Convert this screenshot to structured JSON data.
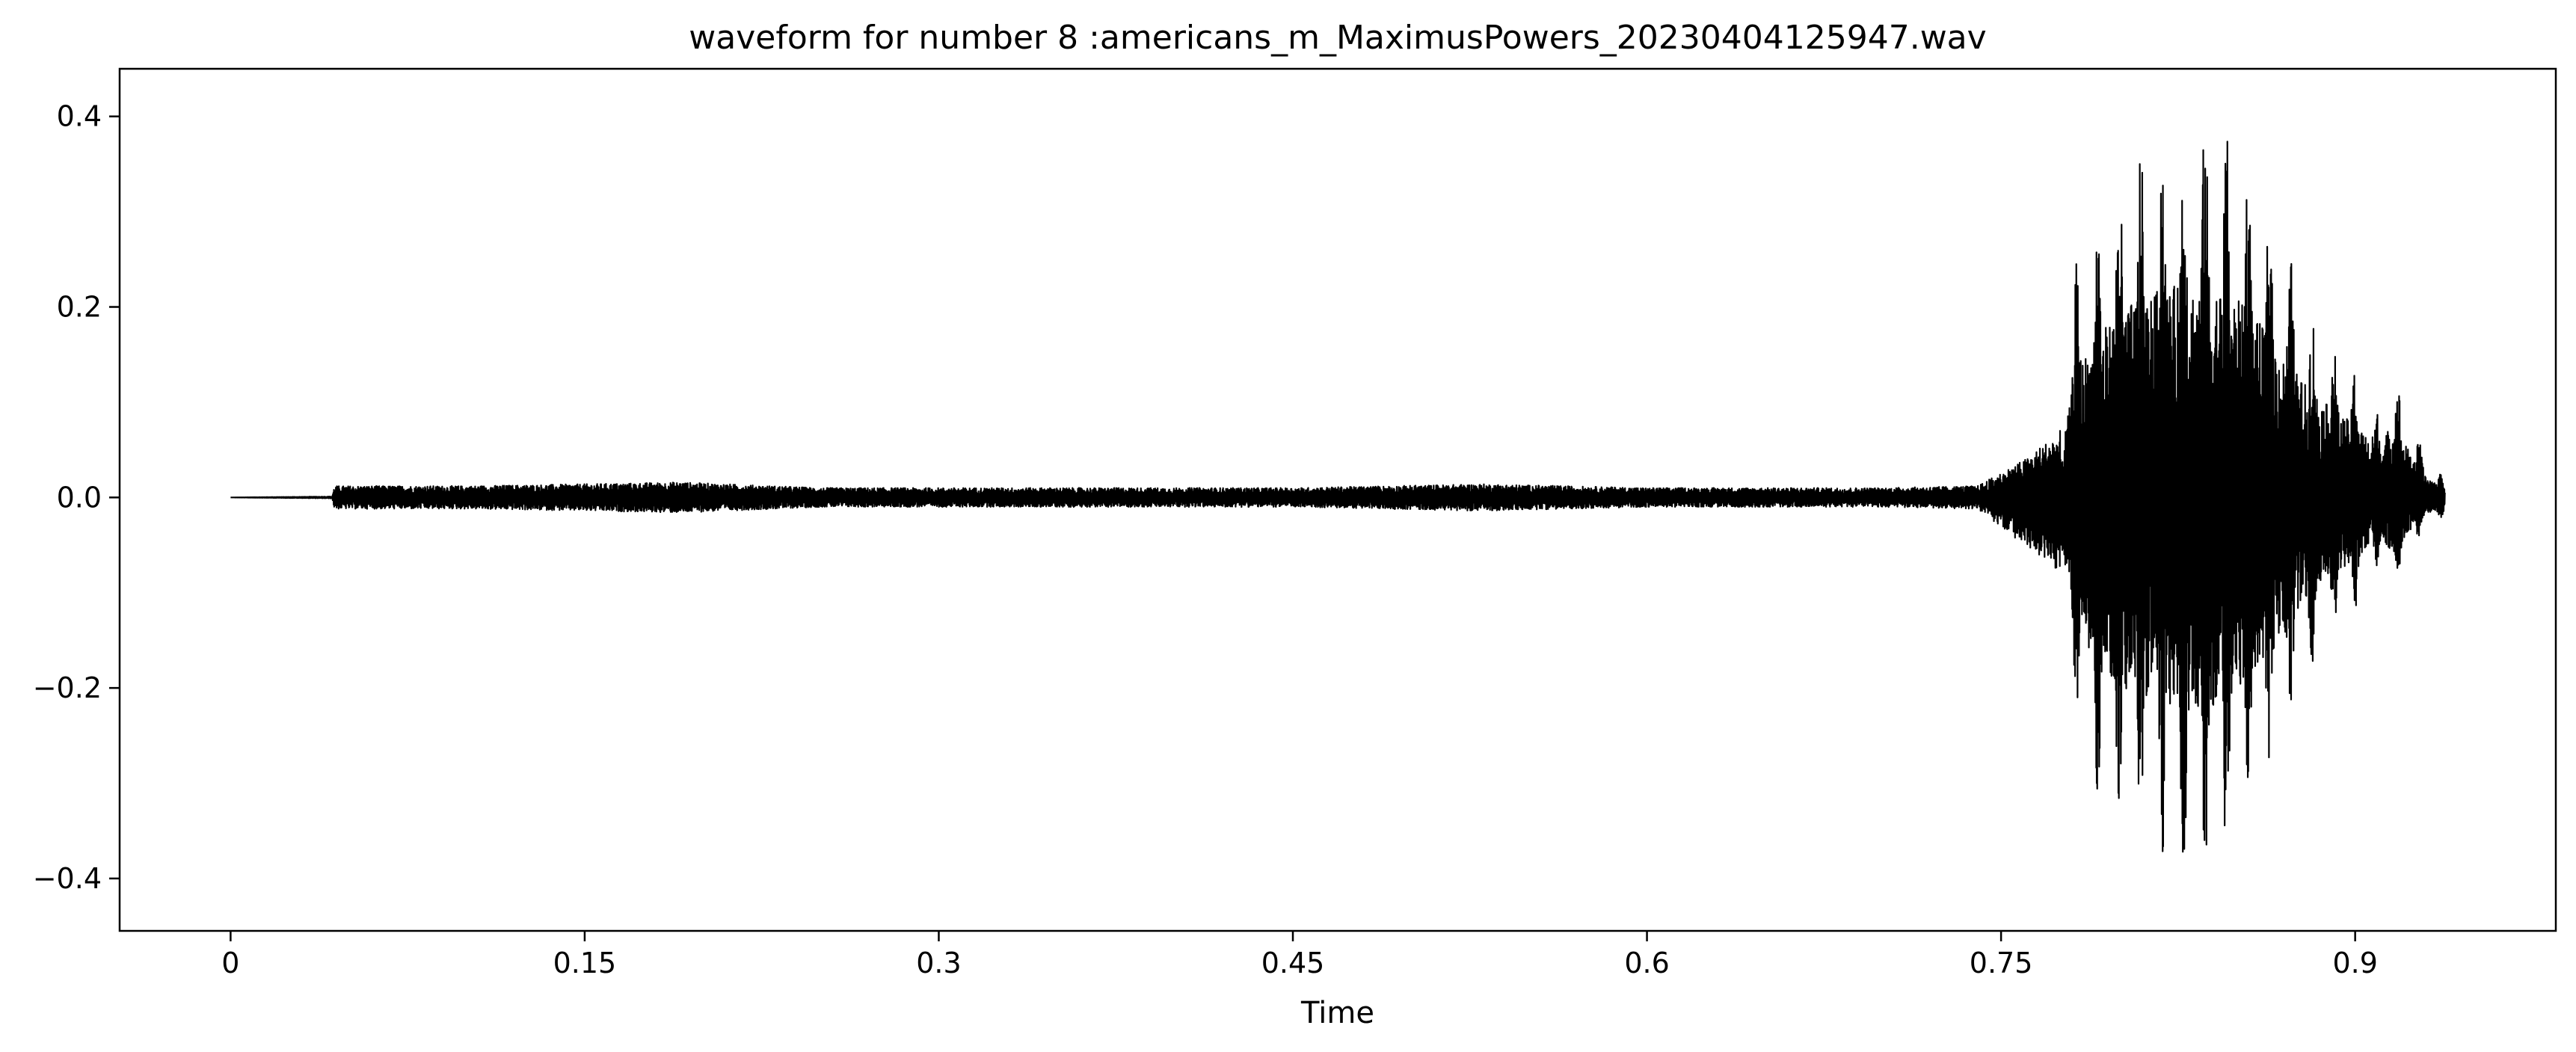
{
  "chart_data": {
    "type": "line",
    "title": "waveform for number 8 :americans_m_MaximusPowers_20230404125947.wav",
    "xlabel": "Time",
    "ylabel": "",
    "xlim": [
      -0.047,
      0.985
    ],
    "ylim": [
      -0.455,
      0.45
    ],
    "x_ticks": [
      0,
      0.15,
      0.3,
      0.45,
      0.6,
      0.75,
      0.9
    ],
    "x_tick_labels": [
      "0",
      "0.15",
      "0.3",
      "0.45",
      "0.6",
      "0.75",
      "0.9"
    ],
    "y_ticks": [
      0.4,
      0.2,
      0.0,
      -0.2,
      -0.4
    ],
    "y_tick_labels": [
      "0.4",
      "0.2",
      "0.0",
      "−0.2",
      "−0.4"
    ],
    "grid": false,
    "series": [
      {
        "color": "#000000",
        "style": "audio waveform",
        "duration": 0.938,
        "envelope": {
          "x": [
            0,
            0.043,
            0.044,
            0.06,
            0.1,
            0.15,
            0.19,
            0.25,
            0.35,
            0.45,
            0.53,
            0.6,
            0.7,
            0.74,
            0.76,
            0.775,
            0.782,
            0.79,
            0.8,
            0.81,
            0.82,
            0.83,
            0.84,
            0.85,
            0.86,
            0.87,
            0.88,
            0.89,
            0.9,
            0.905,
            0.91,
            0.915,
            0.92,
            0.93,
            0.938
          ],
          "max": [
            0,
            0.001,
            0.012,
            0.012,
            0.012,
            0.014,
            0.016,
            0.01,
            0.01,
            0.01,
            0.014,
            0.01,
            0.01,
            0.012,
            0.04,
            0.07,
            0.25,
            0.3,
            0.36,
            0.38,
            0.4,
            0.41,
            0.41,
            0.38,
            0.33,
            0.27,
            0.21,
            0.17,
            0.14,
            0.12,
            0.09,
            0.14,
            0.11,
            0.04,
            0.02
          ],
          "min": [
            0,
            -0.001,
            -0.012,
            -0.012,
            -0.012,
            -0.014,
            -0.016,
            -0.01,
            -0.01,
            -0.01,
            -0.014,
            -0.01,
            -0.01,
            -0.012,
            -0.05,
            -0.08,
            -0.25,
            -0.31,
            -0.36,
            -0.38,
            -0.4,
            -0.41,
            -0.4,
            -0.37,
            -0.31,
            -0.26,
            -0.19,
            -0.15,
            -0.12,
            -0.1,
            -0.07,
            -0.1,
            -0.08,
            -0.03,
            -0.02
          ]
        }
      }
    ]
  }
}
